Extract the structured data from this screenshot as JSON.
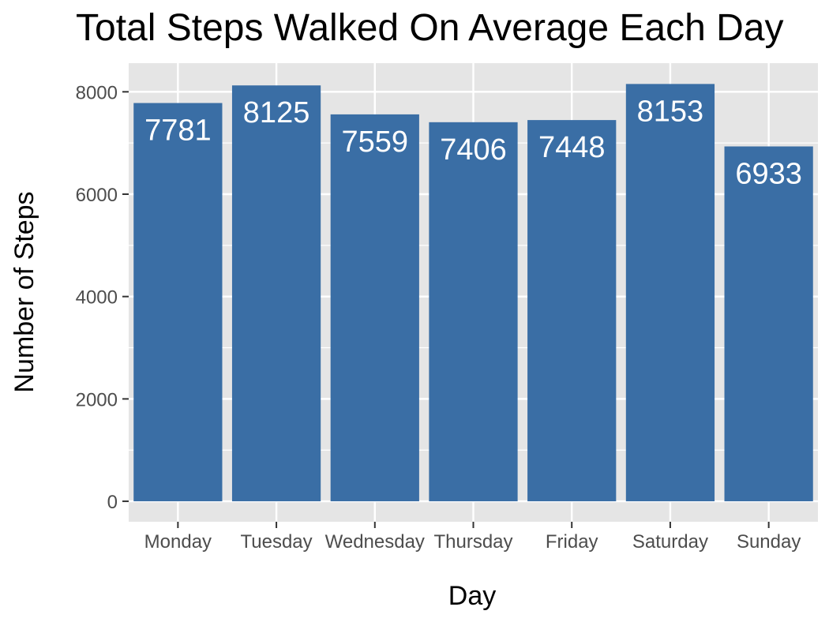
{
  "chart_data": {
    "type": "bar",
    "title": "Total Steps Walked On Average Each Day",
    "xlabel": "Day",
    "ylabel": "Number of Steps",
    "categories": [
      "Monday",
      "Tuesday",
      "Wednesday",
      "Thursday",
      "Friday",
      "Saturday",
      "Sunday"
    ],
    "values": [
      7781,
      8125,
      7559,
      7406,
      7448,
      8153,
      6933
    ],
    "data_labels": [
      "7781",
      "8125",
      "7559",
      "7406",
      "7448",
      "8153",
      "6933"
    ],
    "yticks": [
      0,
      2000,
      4000,
      6000,
      8000
    ],
    "ytick_labels": [
      "0",
      "2000",
      "4000",
      "6000",
      "8000"
    ],
    "ylim": [
      -400,
      8560
    ],
    "grid": true,
    "legend": "none",
    "colors": {
      "bar": "#3A6EA5",
      "panel": "#E5E5E5",
      "gridline": "#FFFFFF",
      "data_label": "#FFFFFF",
      "tick_text": "#4D4D4D",
      "axis_title": "#000000"
    }
  }
}
